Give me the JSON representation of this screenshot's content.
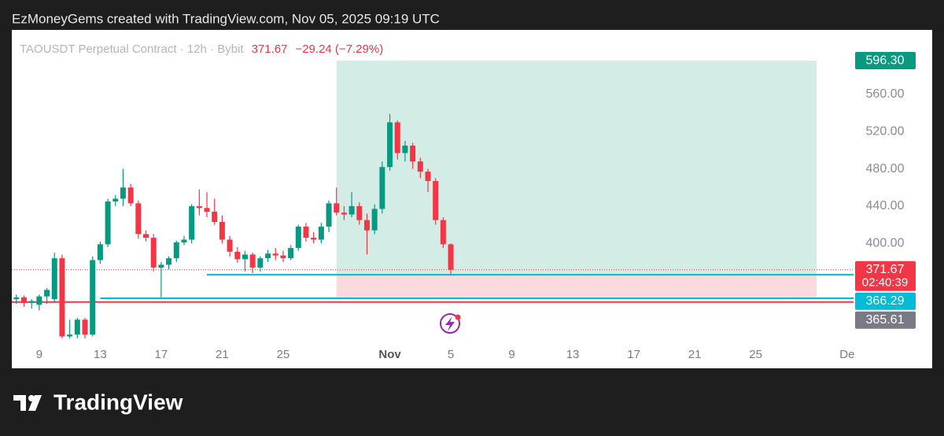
{
  "attribution": "EzMoneyGems created with TradingView.com, Nov 05, 2025 09:19 UTC",
  "brand": "TradingView",
  "chart_data": {
    "type": "candlestick",
    "symbol": "TAOUSDT Perpetual Contract · 12h · Bybit",
    "last": 371.67,
    "change": "−29.24 (−7.29%)",
    "up_color": "#089981",
    "down_color": "#f23645",
    "x": [
      7.5,
      8,
      8.5,
      9,
      9.5,
      10,
      10.5,
      11,
      11.5,
      12,
      12.5,
      13,
      13.5,
      14,
      14.5,
      15,
      15.5,
      16,
      16.5,
      17,
      17.5,
      18,
      18.5,
      19,
      19.5,
      20,
      20.5,
      21,
      21.5,
      22,
      22.5,
      23,
      23.5,
      24,
      24.5,
      25,
      25.5,
      26,
      26.5,
      27,
      27.5,
      28,
      28.5,
      29,
      29.5,
      30,
      30.5,
      31,
      31.5,
      32,
      32.5,
      33,
      33.5,
      34,
      34.5,
      35,
      35.5,
      36
    ],
    "open": [
      340,
      342,
      336,
      334,
      343,
      340,
      384,
      300,
      302,
      318,
      302,
      382,
      399,
      445,
      448,
      460,
      443,
      410,
      406,
      374,
      377,
      384,
      401,
      404,
      440,
      438,
      434,
      423,
      404,
      391,
      383,
      388,
      374,
      384,
      389,
      387,
      384,
      395,
      418,
      406,
      404,
      418,
      443,
      433,
      431,
      440,
      425,
      414,
      437,
      482,
      530,
      497,
      505,
      488,
      477,
      467,
      425,
      399
    ],
    "high": [
      345,
      344,
      340,
      345,
      352,
      390,
      388,
      318,
      320,
      320,
      386,
      402,
      448,
      452,
      480,
      464,
      446,
      414,
      410,
      380,
      386,
      403,
      408,
      442,
      458,
      455,
      448,
      430,
      408,
      396,
      392,
      390,
      386,
      393,
      395,
      392,
      398,
      420,
      422,
      412,
      422,
      446,
      460,
      440,
      455,
      444,
      432,
      442,
      488,
      539,
      532,
      510,
      508,
      492,
      480,
      470,
      428,
      400
    ],
    "low": [
      335,
      332,
      330,
      328,
      335,
      336,
      298,
      298,
      298,
      298,
      300,
      378,
      396,
      440,
      440,
      440,
      405,
      402,
      370,
      342,
      372,
      380,
      398,
      400,
      430,
      428,
      420,
      400,
      386,
      379,
      370,
      368,
      370,
      380,
      382,
      380,
      382,
      392,
      402,
      400,
      400,
      412,
      430,
      425,
      428,
      420,
      388,
      410,
      432,
      478,
      490,
      488,
      480,
      470,
      455,
      420,
      395,
      367
    ],
    "close": [
      342,
      336,
      338,
      343,
      350,
      384,
      300,
      302,
      318,
      302,
      382,
      399,
      445,
      448,
      460,
      443,
      410,
      406,
      374,
      377,
      384,
      401,
      404,
      440,
      438,
      434,
      423,
      404,
      391,
      383,
      388,
      374,
      384,
      389,
      387,
      384,
      395,
      418,
      406,
      404,
      418,
      443,
      433,
      431,
      440,
      425,
      414,
      437,
      482,
      530,
      497,
      505,
      488,
      477,
      467,
      425,
      399,
      371.67
    ],
    "xlim": [
      7.2,
      62.42
    ],
    "ylim": [
      296.2,
      629.3
    ],
    "xticks": [
      9,
      13,
      17,
      21,
      25,
      {
        "value": 32,
        "label": "Nov"
      },
      {
        "value": 36,
        "label": "5"
      },
      {
        "value": 40,
        "label": "9"
      },
      {
        "value": 44,
        "label": "13"
      },
      {
        "value": 48,
        "label": "17"
      },
      {
        "value": 52,
        "label": "21"
      },
      {
        "value": 56,
        "label": "25"
      },
      {
        "value": 62,
        "label": "De"
      }
    ],
    "yticks": [
      {
        "value": 400,
        "label": "400.00"
      },
      {
        "value": 440,
        "label": "440.00"
      },
      {
        "value": 480,
        "label": "480.00"
      },
      {
        "value": 520,
        "label": "520.00"
      },
      {
        "value": 560,
        "label": "560.00"
      }
    ],
    "grid": false,
    "position": {
      "start": 28.5,
      "end": 60,
      "target": 596.3,
      "entry": 366.29,
      "stop": 341,
      "profit_color": "#d3ede6",
      "loss_color": "#fadadd"
    },
    "levels": [
      {
        "value": 366.29,
        "from": 20,
        "color": "#00bcd4"
      },
      {
        "value": 341,
        "from": 13,
        "color": "#00bcd4"
      },
      {
        "value": 337,
        "from": 7.2,
        "color": "#f23645"
      }
    ],
    "price_labels": [
      {
        "value": 596.3,
        "label": "596.30",
        "color": "#089981"
      },
      {
        "value": 371.67,
        "label": "371.67",
        "countdown": "02:40:39",
        "color": "#f23645"
      },
      {
        "value": 366.29,
        "label": "366.29",
        "color": "#00bcd4"
      },
      {
        "value": 365.61,
        "label": "365.61",
        "color": "#787b86"
      }
    ]
  }
}
